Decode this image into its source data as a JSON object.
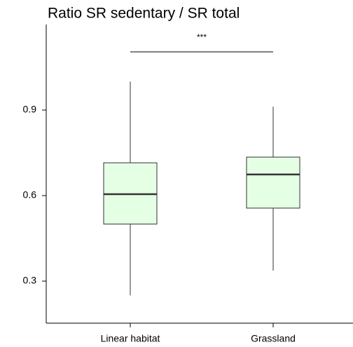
{
  "chart_data": {
    "type": "box",
    "title": "Ratio SR sedentary / SR total",
    "categories": [
      "Linear habitat",
      "Grassland"
    ],
    "min": [
      0.25,
      0.337
    ],
    "q1": [
      0.5,
      0.556
    ],
    "median": [
      0.605,
      0.674
    ],
    "q3": [
      0.715,
      0.735
    ],
    "max": [
      1.0,
      0.912
    ],
    "color": "#e5ffe5",
    "annotations": [
      "***"
    ],
    "ylim": [
      0.1525,
      1.2
    ],
    "yticks": [
      0.3,
      0.6,
      0.9
    ],
    "grid": false
  }
}
